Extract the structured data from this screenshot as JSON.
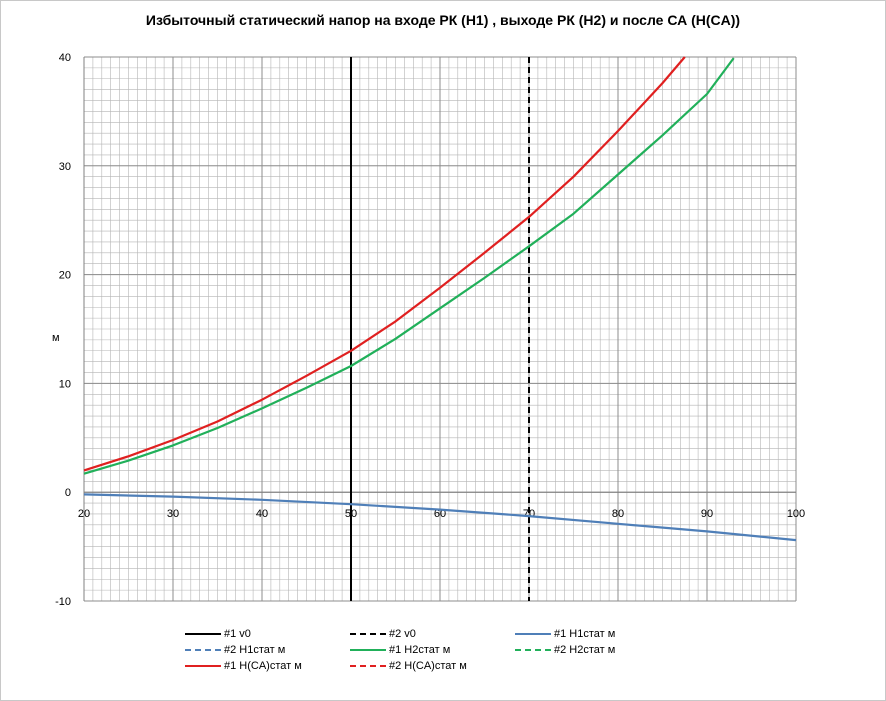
{
  "chart_data": {
    "type": "line",
    "title": "Избыточный статический напор на входе РК (H1) , выходе РК (H2) и после СА (H(CA))",
    "xlabel": "",
    "ylabel": "м",
    "xlim": [
      20,
      100
    ],
    "ylim": [
      -10,
      40
    ],
    "x_ticks": [
      "20",
      "30",
      "40",
      "50",
      "60",
      "70",
      "80",
      "90",
      "100"
    ],
    "y_ticks": [
      "-10",
      "0",
      "10",
      "20",
      "30",
      "40"
    ],
    "grid": true,
    "legend_position": "bottom",
    "vlines": [
      {
        "name": "#1 v0",
        "x": 50,
        "style": "solid",
        "color": "#000000"
      },
      {
        "name": "#2 v0",
        "x": 70,
        "style": "dashed",
        "color": "#000000"
      }
    ],
    "series": [
      {
        "name": "#1 H1стат м",
        "color": "#4f7fb8",
        "style": "solid",
        "x": [
          20,
          30,
          40,
          50,
          60,
          70,
          80,
          90,
          100
        ],
        "y": [
          -0.2,
          -0.4,
          -0.7,
          -1.1,
          -1.6,
          -2.2,
          -2.9,
          -3.6,
          -4.4
        ]
      },
      {
        "name": "#1 H2стат м",
        "color": "#21b05a",
        "style": "solid",
        "x": [
          20,
          25,
          30,
          35,
          40,
          45,
          50,
          55,
          60,
          65,
          70,
          75,
          80,
          85,
          90,
          93
        ],
        "y": [
          1.7,
          2.9,
          4.3,
          5.9,
          7.7,
          9.6,
          11.6,
          14.1,
          16.9,
          19.7,
          22.6,
          25.6,
          29.2,
          32.8,
          36.6,
          39.9
        ]
      },
      {
        "name": "#1 H(CA)стат м",
        "color": "#e02020",
        "style": "solid",
        "x": [
          20,
          25,
          30,
          35,
          40,
          45,
          50,
          55,
          60,
          65,
          70,
          75,
          80,
          85,
          87.5
        ],
        "y": [
          2.0,
          3.3,
          4.8,
          6.5,
          8.5,
          10.7,
          13.0,
          15.7,
          18.8,
          22.0,
          25.3,
          29.0,
          33.2,
          37.6,
          40.0
        ]
      }
    ]
  },
  "legend": {
    "row1": [
      "#1 v0",
      "#2 v0",
      "#1 H1стат м"
    ],
    "row2": [
      "#2 H1стат м",
      "#1 H2стат м",
      "#2 H2стат м"
    ],
    "row3": [
      "#1 H(CA)стат м",
      "#2 H(CA)стат м"
    ]
  },
  "colors": {
    "v0": "#000000",
    "h1": "#4f7fb8",
    "h2": "#21b05a",
    "hca": "#e02020",
    "grid": "#b5b5b5",
    "axis": "#808080"
  }
}
